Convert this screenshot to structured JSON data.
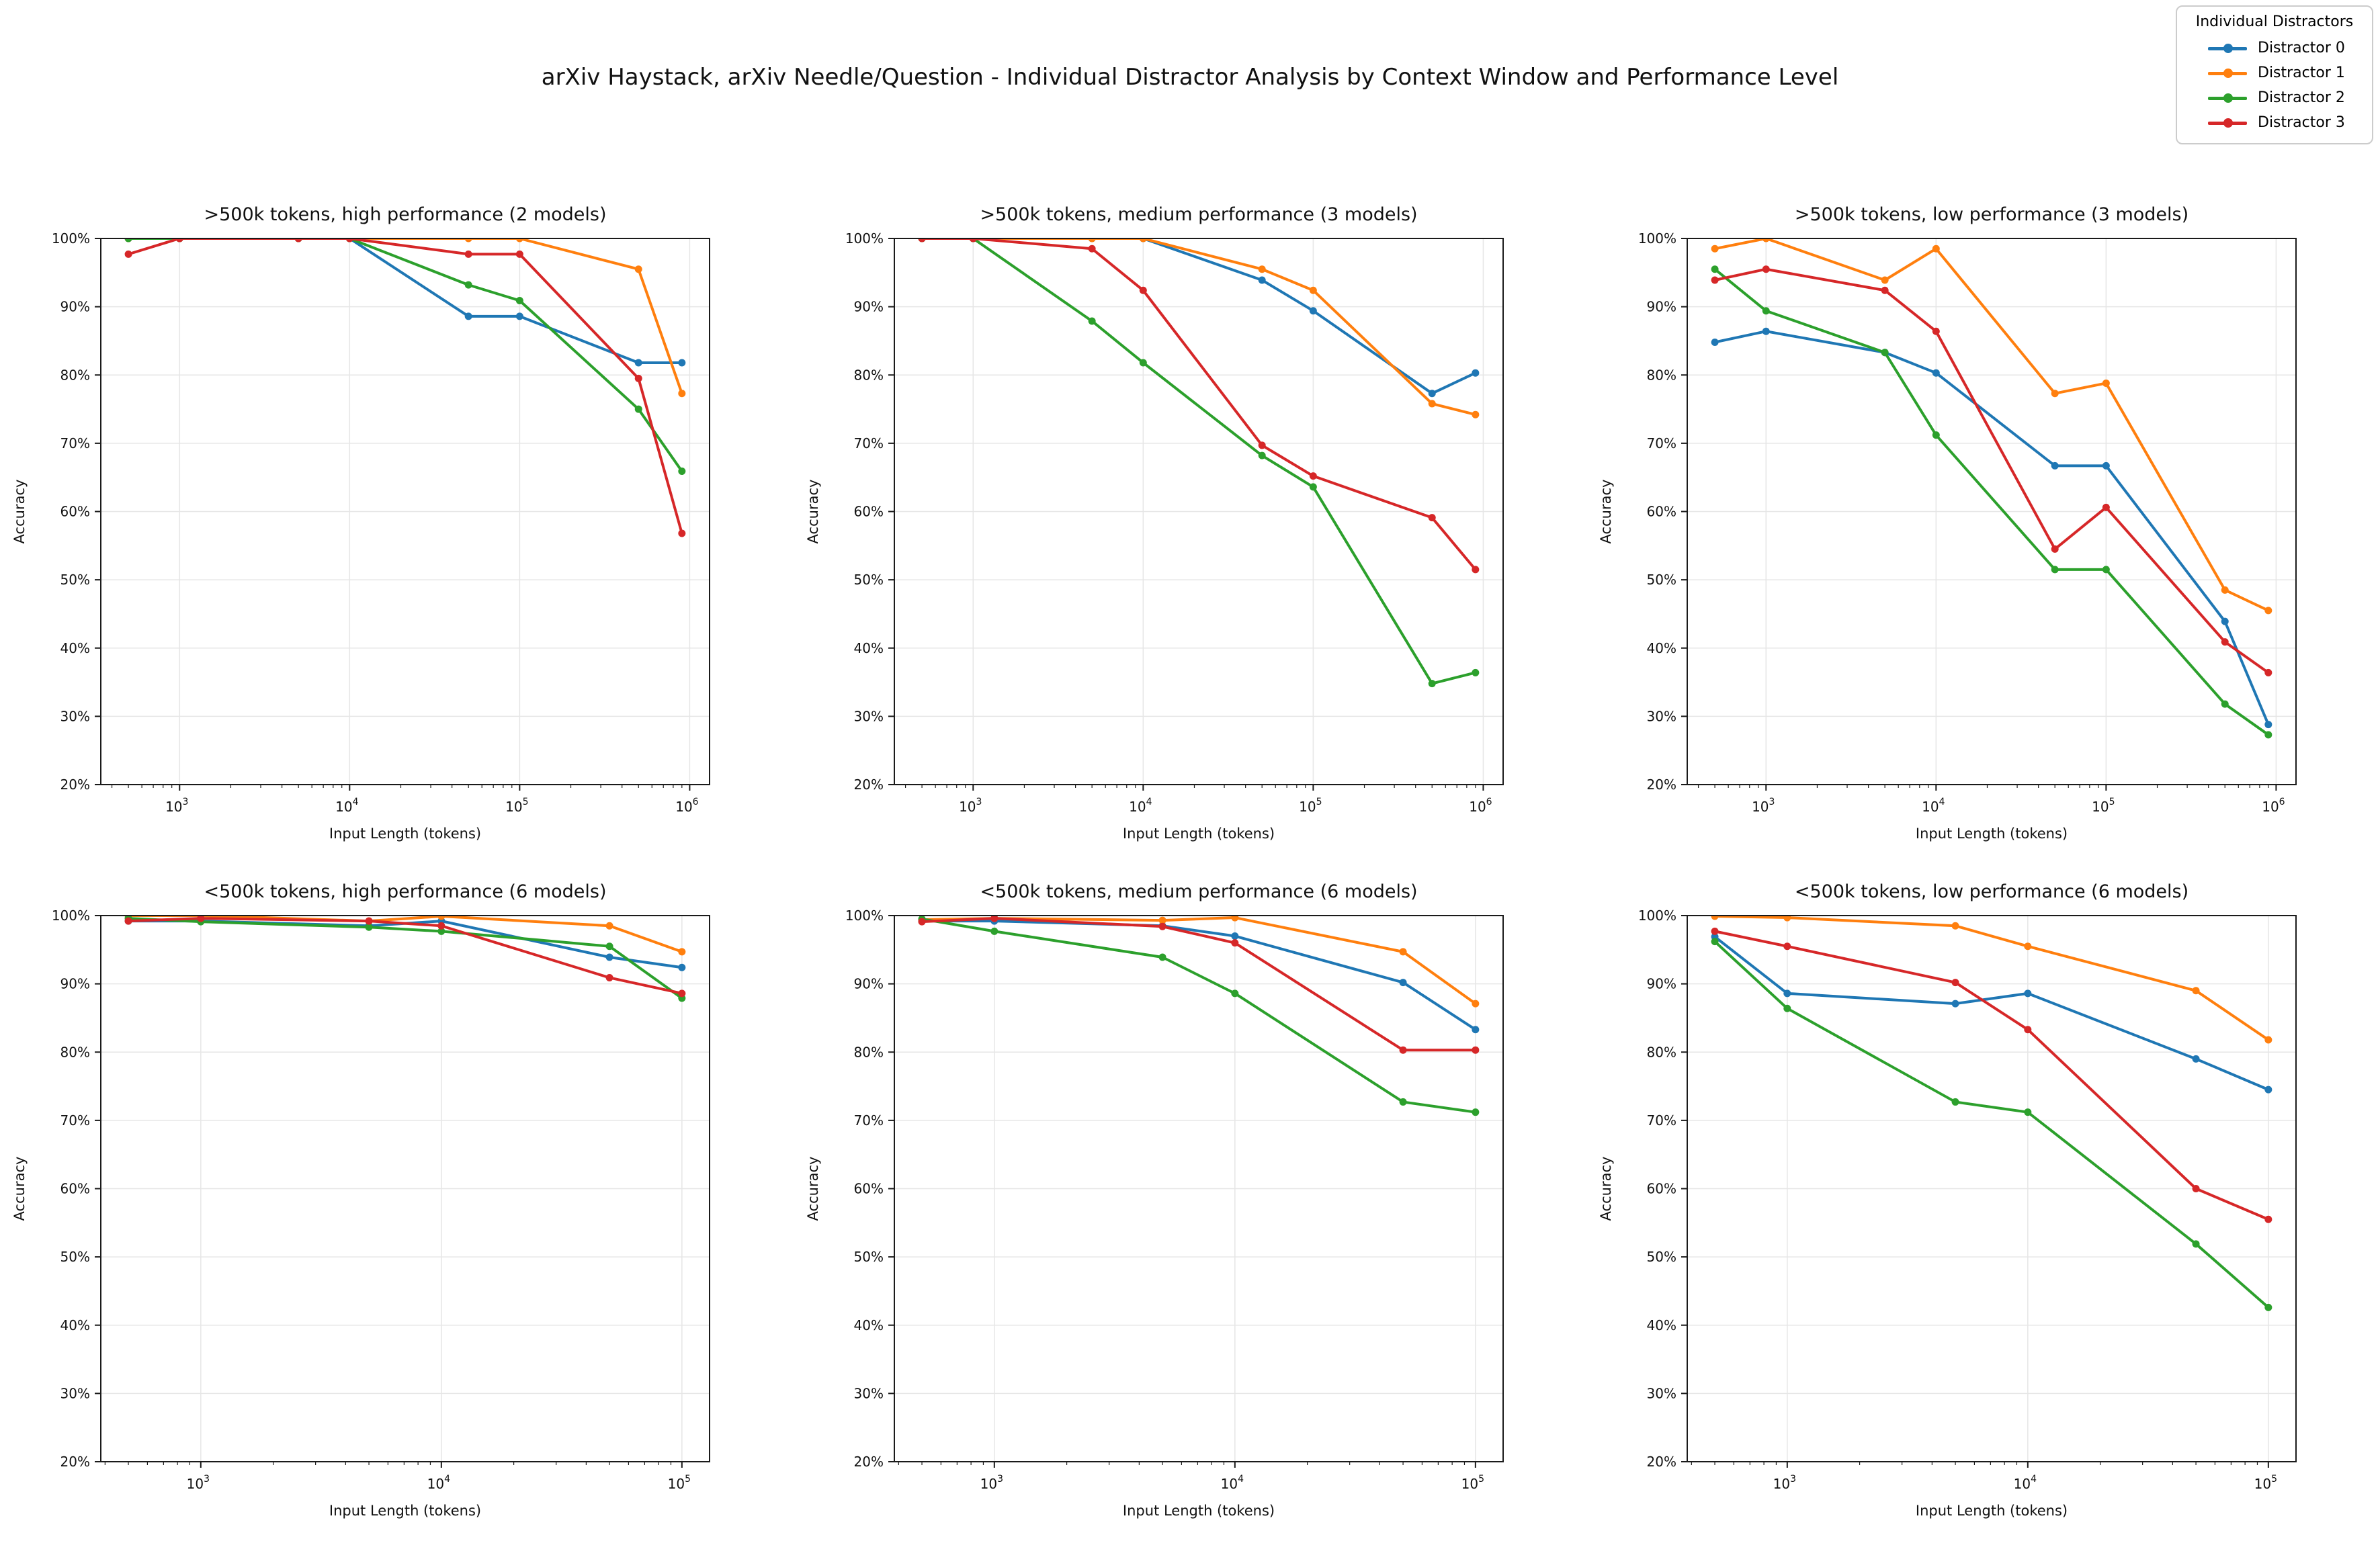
{
  "figure": {
    "title": "arXiv Haystack, arXiv Needle/Question - Individual Distractor Analysis by Context Window and Performance Level",
    "background": "#ffffff",
    "text_color": "#111111",
    "grid_color": "#e6e6e6",
    "spine_color": "#1a1a1a"
  },
  "legend": {
    "title": "Individual Distractors",
    "entries": [
      {
        "label": "Distractor 0",
        "color": "#1f77b4"
      },
      {
        "label": "Distractor 1",
        "color": "#ff7f0e"
      },
      {
        "label": "Distractor 2",
        "color": "#2ca02c"
      },
      {
        "label": "Distractor 3",
        "color": "#d62728"
      }
    ]
  },
  "chart_data": [
    {
      "type": "line",
      "title": ">500k tokens, high performance (2 models)",
      "xlabel": "Input Length (tokens)",
      "ylabel": "Accuracy",
      "xscale": "log",
      "grid": true,
      "xlim": [
        344,
        1309000
      ],
      "ylim": [
        20,
        100
      ],
      "xticks": [
        1000,
        10000,
        100000,
        1000000
      ],
      "xtick_labels": [
        "10^3",
        "10^4",
        "10^5",
        "10^6"
      ],
      "yticks": [
        20,
        30,
        40,
        50,
        60,
        70,
        80,
        90,
        100
      ],
      "ytick_labels": [
        "20%",
        "30%",
        "40%",
        "50%",
        "60%",
        "70%",
        "80%",
        "90%",
        "100%"
      ],
      "x": [
        500,
        1000,
        5000,
        10000,
        50000,
        100000,
        500000,
        900000
      ],
      "series": [
        {
          "name": "Distractor 0",
          "color": "#1f77b4",
          "values": [
            100,
            100,
            100,
            100,
            88.6,
            88.6,
            81.8,
            81.8
          ]
        },
        {
          "name": "Distractor 1",
          "color": "#ff7f0e",
          "values": [
            100,
            100,
            100,
            100,
            100,
            100,
            95.5,
            77.3
          ]
        },
        {
          "name": "Distractor 2",
          "color": "#2ca02c",
          "values": [
            100,
            100,
            100,
            100,
            93.2,
            90.9,
            75.0,
            65.9
          ]
        },
        {
          "name": "Distractor 3",
          "color": "#d62728",
          "values": [
            97.7,
            100,
            100,
            100,
            97.7,
            97.7,
            79.5,
            56.8
          ]
        }
      ]
    },
    {
      "type": "line",
      "title": ">500k tokens, medium performance (3 models)",
      "xlabel": "Input Length (tokens)",
      "ylabel": "Accuracy",
      "xscale": "log",
      "grid": true,
      "xlim": [
        344,
        1309000
      ],
      "ylim": [
        20,
        100
      ],
      "xticks": [
        1000,
        10000,
        100000,
        1000000
      ],
      "xtick_labels": [
        "10^3",
        "10^4",
        "10^5",
        "10^6"
      ],
      "yticks": [
        20,
        30,
        40,
        50,
        60,
        70,
        80,
        90,
        100
      ],
      "ytick_labels": [
        "20%",
        "30%",
        "40%",
        "50%",
        "60%",
        "70%",
        "80%",
        "90%",
        "100%"
      ],
      "x": [
        500,
        1000,
        5000,
        10000,
        50000,
        100000,
        500000,
        900000
      ],
      "series": [
        {
          "name": "Distractor 0",
          "color": "#1f77b4",
          "values": [
            100,
            100,
            100,
            100,
            93.9,
            89.4,
            77.3,
            80.3
          ]
        },
        {
          "name": "Distractor 1",
          "color": "#ff7f0e",
          "values": [
            100,
            100,
            100,
            100,
            95.5,
            92.4,
            75.8,
            74.2
          ]
        },
        {
          "name": "Distractor 2",
          "color": "#2ca02c",
          "values": [
            100,
            100,
            87.9,
            81.8,
            68.2,
            63.6,
            34.8,
            36.4
          ]
        },
        {
          "name": "Distractor 3",
          "color": "#d62728",
          "values": [
            100,
            100,
            98.5,
            92.4,
            69.7,
            65.2,
            59.1,
            51.5
          ]
        }
      ]
    },
    {
      "type": "line",
      "title": ">500k tokens, low performance (3 models)",
      "xlabel": "Input Length (tokens)",
      "ylabel": "Accuracy",
      "xscale": "log",
      "grid": true,
      "xlim": [
        344,
        1309000
      ],
      "ylim": [
        20,
        100
      ],
      "xticks": [
        1000,
        10000,
        100000,
        1000000
      ],
      "xtick_labels": [
        "10^3",
        "10^4",
        "10^5",
        "10^6"
      ],
      "yticks": [
        20,
        30,
        40,
        50,
        60,
        70,
        80,
        90,
        100
      ],
      "ytick_labels": [
        "20%",
        "30%",
        "40%",
        "50%",
        "60%",
        "70%",
        "80%",
        "90%",
        "100%"
      ],
      "x": [
        500,
        1000,
        5000,
        10000,
        50000,
        100000,
        500000,
        900000
      ],
      "series": [
        {
          "name": "Distractor 0",
          "color": "#1f77b4",
          "values": [
            84.8,
            86.4,
            83.3,
            80.3,
            66.7,
            66.7,
            43.9,
            28.8
          ]
        },
        {
          "name": "Distractor 1",
          "color": "#ff7f0e",
          "values": [
            98.5,
            100,
            93.9,
            98.5,
            77.3,
            78.8,
            48.5,
            45.5
          ]
        },
        {
          "name": "Distractor 2",
          "color": "#2ca02c",
          "values": [
            95.5,
            89.4,
            83.3,
            71.2,
            51.5,
            51.5,
            31.8,
            27.3
          ]
        },
        {
          "name": "Distractor 3",
          "color": "#d62728",
          "values": [
            93.9,
            95.5,
            92.4,
            86.4,
            54.5,
            60.6,
            40.9,
            36.4
          ]
        }
      ]
    },
    {
      "type": "line",
      "title": "<500k tokens, high performance (6 models)",
      "xlabel": "Input Length (tokens)",
      "ylabel": "Accuracy",
      "xscale": "log",
      "grid": true,
      "xlim": [
        384,
        130300
      ],
      "ylim": [
        20,
        100
      ],
      "xticks": [
        1000,
        10000,
        100000
      ],
      "xtick_labels": [
        "10^3",
        "10^4",
        "10^5"
      ],
      "yticks": [
        20,
        30,
        40,
        50,
        60,
        70,
        80,
        90,
        100
      ],
      "ytick_labels": [
        "20%",
        "30%",
        "40%",
        "50%",
        "60%",
        "70%",
        "80%",
        "90%",
        "100%"
      ],
      "x": [
        500,
        1000,
        5000,
        10000,
        50000,
        100000
      ],
      "series": [
        {
          "name": "Distractor 0",
          "color": "#1f77b4",
          "values": [
            99.2,
            99.2,
            98.5,
            99.2,
            93.9,
            92.4
          ]
        },
        {
          "name": "Distractor 1",
          "color": "#ff7f0e",
          "values": [
            100,
            100,
            99.2,
            99.9,
            98.5,
            94.7
          ]
        },
        {
          "name": "Distractor 2",
          "color": "#2ca02c",
          "values": [
            99.6,
            99.1,
            98.3,
            97.7,
            95.5,
            87.9
          ]
        },
        {
          "name": "Distractor 3",
          "color": "#d62728",
          "values": [
            99.2,
            99.6,
            99.2,
            98.5,
            90.9,
            88.6
          ]
        }
      ]
    },
    {
      "type": "line",
      "title": "<500k tokens, medium performance (6 models)",
      "xlabel": "Input Length (tokens)",
      "ylabel": "Accuracy",
      "xscale": "log",
      "grid": true,
      "xlim": [
        384,
        130300
      ],
      "ylim": [
        20,
        100
      ],
      "xticks": [
        1000,
        10000,
        100000
      ],
      "xtick_labels": [
        "10^3",
        "10^4",
        "10^5"
      ],
      "yticks": [
        20,
        30,
        40,
        50,
        60,
        70,
        80,
        90,
        100
      ],
      "ytick_labels": [
        "20%",
        "30%",
        "40%",
        "50%",
        "60%",
        "70%",
        "80%",
        "90%",
        "100%"
      ],
      "x": [
        500,
        1000,
        5000,
        10000,
        50000,
        100000
      ],
      "series": [
        {
          "name": "Distractor 0",
          "color": "#1f77b4",
          "values": [
            99.2,
            99.2,
            98.5,
            97.0,
            90.2,
            83.3
          ]
        },
        {
          "name": "Distractor 1",
          "color": "#ff7f0e",
          "values": [
            99.4,
            99.6,
            99.3,
            99.7,
            94.7,
            87.1
          ]
        },
        {
          "name": "Distractor 2",
          "color": "#2ca02c",
          "values": [
            99.5,
            97.7,
            93.9,
            88.6,
            72.7,
            71.2
          ]
        },
        {
          "name": "Distractor 3",
          "color": "#d62728",
          "values": [
            99.1,
            99.6,
            98.4,
            96.0,
            80.3,
            80.3
          ]
        }
      ]
    },
    {
      "type": "line",
      "title": "<500k tokens, low performance (6 models)",
      "xlabel": "Input Length (tokens)",
      "ylabel": "Accuracy",
      "xscale": "log",
      "grid": true,
      "xlim": [
        384,
        130300
      ],
      "ylim": [
        20,
        100
      ],
      "xticks": [
        1000,
        10000,
        100000
      ],
      "xtick_labels": [
        "10^3",
        "10^4",
        "10^5"
      ],
      "yticks": [
        20,
        30,
        40,
        50,
        60,
        70,
        80,
        90,
        100
      ],
      "ytick_labels": [
        "20%",
        "30%",
        "40%",
        "50%",
        "60%",
        "70%",
        "80%",
        "90%",
        "100%"
      ],
      "x": [
        500,
        1000,
        5000,
        10000,
        50000,
        100000
      ],
      "series": [
        {
          "name": "Distractor 0",
          "color": "#1f77b4",
          "values": [
            96.9,
            88.6,
            87.1,
            88.6,
            79.0,
            74.5
          ]
        },
        {
          "name": "Distractor 1",
          "color": "#ff7f0e",
          "values": [
            99.9,
            99.7,
            98.5,
            95.5,
            89.0,
            81.8
          ]
        },
        {
          "name": "Distractor 2",
          "color": "#2ca02c",
          "values": [
            96.2,
            86.4,
            72.7,
            71.2,
            51.9,
            42.6
          ]
        },
        {
          "name": "Distractor 3",
          "color": "#d62728",
          "values": [
            97.7,
            95.5,
            90.2,
            83.3,
            60.0,
            55.5
          ]
        }
      ]
    }
  ]
}
